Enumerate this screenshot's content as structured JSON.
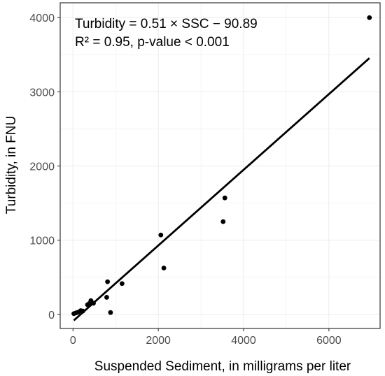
{
  "chart_data": {
    "type": "scatter",
    "xlabel": "Suspended Sediment, in milligrams per liter",
    "ylabel": "Turbidity, in FNU",
    "xlim": [
      -300,
      7200
    ],
    "ylim": [
      -190,
      4200
    ],
    "x_ticks": [
      0,
      2000,
      4000,
      6000
    ],
    "y_ticks": [
      0,
      1000,
      2000,
      3000,
      4000
    ],
    "x_tick_labels": [
      "0",
      "2000",
      "4000",
      "6000"
    ],
    "y_tick_labels": [
      "0",
      "1000",
      "2000",
      "3000",
      "4000"
    ],
    "grid": true,
    "points": [
      {
        "x": 20,
        "y": 10
      },
      {
        "x": 70,
        "y": 20
      },
      {
        "x": 120,
        "y": 30
      },
      {
        "x": 180,
        "y": 50
      },
      {
        "x": 230,
        "y": 45
      },
      {
        "x": 340,
        "y": 130
      },
      {
        "x": 380,
        "y": 145
      },
      {
        "x": 420,
        "y": 185
      },
      {
        "x": 480,
        "y": 150
      },
      {
        "x": 790,
        "y": 230
      },
      {
        "x": 810,
        "y": 440
      },
      {
        "x": 880,
        "y": 25
      },
      {
        "x": 1150,
        "y": 415
      },
      {
        "x": 2060,
        "y": 1070
      },
      {
        "x": 2130,
        "y": 625
      },
      {
        "x": 3520,
        "y": 1250
      },
      {
        "x": 3560,
        "y": 1570
      },
      {
        "x": 6950,
        "y": 4000
      }
    ],
    "fit_line": {
      "slope": 0.51,
      "intercept": -90.89,
      "x_range": [
        20,
        6950
      ]
    },
    "annotations": [
      "Turbidity = 0.51 × SSC − 90.89",
      "R² = 0.95, p-value < 0.001"
    ],
    "colors": {
      "point": "#000000",
      "line": "#000000",
      "grid": "#ebebeb",
      "panel_border": "#333333"
    }
  }
}
